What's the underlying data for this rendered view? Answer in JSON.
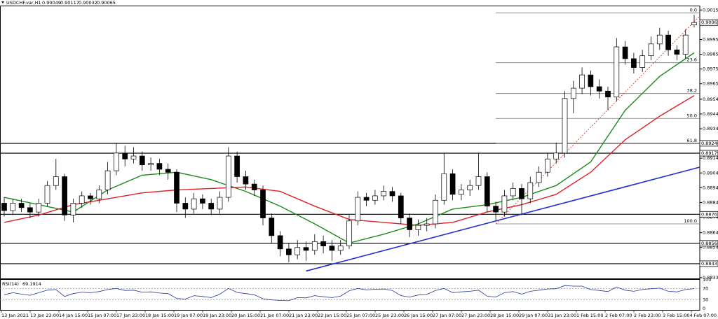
{
  "chart_data": {
    "type": "candlestick",
    "title": "USDCHF.var,H1",
    "ohlc": [
      [
        0.8884,
        0.8888,
        0.8875,
        0.8879
      ],
      [
        0.8879,
        0.8887,
        0.8876,
        0.8884
      ],
      [
        0.8884,
        0.8887,
        0.8878,
        0.8881
      ],
      [
        0.8881,
        0.8884,
        0.8874,
        0.8878
      ],
      [
        0.8878,
        0.8887,
        0.8875,
        0.8884
      ],
      [
        0.8884,
        0.8899,
        0.8882,
        0.8896
      ],
      [
        0.8896,
        0.8914,
        0.8893,
        0.8902
      ],
      [
        0.8902,
        0.8904,
        0.8872,
        0.8876
      ],
      [
        0.8876,
        0.8887,
        0.8871,
        0.8884
      ],
      [
        0.8884,
        0.8892,
        0.8881,
        0.8889
      ],
      [
        0.8889,
        0.8891,
        0.8883,
        0.8887
      ],
      [
        0.8887,
        0.8896,
        0.8884,
        0.8893
      ],
      [
        0.8893,
        0.8912,
        0.889,
        0.8906
      ],
      [
        0.8906,
        0.8925,
        0.8903,
        0.8918
      ],
      [
        0.8918,
        0.8923,
        0.8909,
        0.8914
      ],
      [
        0.8914,
        0.8922,
        0.8911,
        0.8916
      ],
      [
        0.8916,
        0.8919,
        0.8906,
        0.891
      ],
      [
        0.891,
        0.8915,
        0.8906,
        0.8911
      ],
      [
        0.8911,
        0.8914,
        0.8903,
        0.8907
      ],
      [
        0.8907,
        0.8911,
        0.89,
        0.8905
      ],
      [
        0.8905,
        0.8907,
        0.8878,
        0.8884
      ],
      [
        0.8884,
        0.8888,
        0.8874,
        0.888
      ],
      [
        0.888,
        0.8891,
        0.8877,
        0.8887
      ],
      [
        0.8887,
        0.889,
        0.888,
        0.8884
      ],
      [
        0.8884,
        0.8887,
        0.8876,
        0.888
      ],
      [
        0.888,
        0.8892,
        0.8877,
        0.8888
      ],
      [
        0.8888,
        0.8922,
        0.8885,
        0.8916
      ],
      [
        0.8916,
        0.8919,
        0.8898,
        0.8902
      ],
      [
        0.8902,
        0.8906,
        0.8893,
        0.8897
      ],
      [
        0.8897,
        0.89,
        0.8889,
        0.8893
      ],
      [
        0.8893,
        0.8896,
        0.8869,
        0.8874
      ],
      [
        0.8874,
        0.8877,
        0.8857,
        0.8862
      ],
      [
        0.8862,
        0.8865,
        0.8848,
        0.8853
      ],
      [
        0.8853,
        0.8857,
        0.8844,
        0.8849
      ],
      [
        0.8849,
        0.8859,
        0.8846,
        0.8854
      ],
      [
        0.8854,
        0.8858,
        0.8845,
        0.8852
      ],
      [
        0.8852,
        0.8863,
        0.8849,
        0.8858
      ],
      [
        0.8858,
        0.8862,
        0.885,
        0.8855
      ],
      [
        0.8855,
        0.8859,
        0.8845,
        0.8852
      ],
      [
        0.8852,
        0.8859,
        0.8849,
        0.8855
      ],
      [
        0.8855,
        0.8876,
        0.8853,
        0.8872
      ],
      [
        0.8872,
        0.8892,
        0.8869,
        0.8888
      ],
      [
        0.8888,
        0.8891,
        0.8882,
        0.8886
      ],
      [
        0.8886,
        0.8893,
        0.8883,
        0.8889
      ],
      [
        0.8889,
        0.8896,
        0.8886,
        0.8892
      ],
      [
        0.8892,
        0.8895,
        0.8885,
        0.8889
      ],
      [
        0.8889,
        0.8891,
        0.887,
        0.8874
      ],
      [
        0.8874,
        0.8877,
        0.8861,
        0.8866
      ],
      [
        0.8866,
        0.8873,
        0.8862,
        0.8869
      ],
      [
        0.8869,
        0.8874,
        0.8865,
        0.887
      ],
      [
        0.887,
        0.889,
        0.8867,
        0.8886
      ],
      [
        0.8886,
        0.8918,
        0.8883,
        0.8904
      ],
      [
        0.8904,
        0.8907,
        0.8886,
        0.889
      ],
      [
        0.889,
        0.8897,
        0.8886,
        0.8893
      ],
      [
        0.8893,
        0.89,
        0.8889,
        0.8896
      ],
      [
        0.8896,
        0.8918,
        0.8893,
        0.8902
      ],
      [
        0.8902,
        0.8905,
        0.8878,
        0.8882
      ],
      [
        0.8882,
        0.8885,
        0.8872,
        0.8878
      ],
      [
        0.8878,
        0.8893,
        0.8875,
        0.8889
      ],
      [
        0.8889,
        0.8898,
        0.8886,
        0.8894
      ],
      [
        0.8894,
        0.8897,
        0.8876,
        0.8887
      ],
      [
        0.8887,
        0.8902,
        0.8884,
        0.8898
      ],
      [
        0.8898,
        0.8909,
        0.8895,
        0.8905
      ],
      [
        0.8905,
        0.8918,
        0.8902,
        0.8914
      ],
      [
        0.8914,
        0.8925,
        0.8911,
        0.8918
      ],
      [
        0.8918,
        0.896,
        0.8915,
        0.8955
      ],
      [
        0.8955,
        0.8967,
        0.8945,
        0.8962
      ],
      [
        0.8962,
        0.8976,
        0.8958,
        0.8971
      ],
      [
        0.8971,
        0.8974,
        0.8957,
        0.8963
      ],
      [
        0.8963,
        0.8968,
        0.8955,
        0.896
      ],
      [
        0.896,
        0.8963,
        0.8947,
        0.8956
      ],
      [
        0.8956,
        0.8996,
        0.8953,
        0.899
      ],
      [
        0.899,
        0.8994,
        0.8978,
        0.8982
      ],
      [
        0.8982,
        0.8986,
        0.8972,
        0.8976
      ],
      [
        0.8976,
        0.8988,
        0.8973,
        0.8984
      ],
      [
        0.8984,
        0.8997,
        0.8981,
        0.8992
      ],
      [
        0.8992,
        0.9003,
        0.8988,
        0.8998
      ],
      [
        0.8998,
        0.9001,
        0.8984,
        0.8988
      ],
      [
        0.8988,
        0.8991,
        0.8981,
        0.8985
      ],
      [
        0.8985,
        0.9002,
        0.8982,
        0.8998
      ],
      [
        0.90049,
        0.90117,
        0.90032,
        0.90065
      ]
    ],
    "ylim": [
      0.8833,
      0.9018
    ],
    "yticks": [
      {
        "value": 0.9015,
        "label": "0.90150"
      },
      {
        "value": 0.8995,
        "label": "0.89950"
      },
      {
        "value": 0.8985,
        "label": "0.89850"
      },
      {
        "value": 0.8975,
        "label": "0.89750"
      },
      {
        "value": 0.8965,
        "label": "0.89650"
      },
      {
        "value": 0.89545,
        "label": "0.89545"
      },
      {
        "value": 0.89445,
        "label": "0.89445"
      },
      {
        "value": 0.89345,
        "label": "0.89345"
      },
      {
        "value": 0.89145,
        "label": "0.89145"
      },
      {
        "value": 0.89045,
        "label": "0.89045"
      },
      {
        "value": 0.88945,
        "label": "0.88945"
      },
      {
        "value": 0.88845,
        "label": "0.88845"
      },
      {
        "value": 0.88745,
        "label": "0.88745"
      },
      {
        "value": 0.8864,
        "label": "0.88640"
      },
      {
        "value": 0.8854,
        "label": "0.88540"
      },
      {
        "value": 0.88335,
        "label": "0.88335"
      }
    ],
    "categories": [
      "13 Jan 2021",
      "13 Jan 23:00",
      "14 Jan 15:00",
      "15 Jan 07:00",
      "17 Jan 23:00",
      "18 Jan 15:00",
      "19 Jan 07:00",
      "19 Jan 23:00",
      "20 Jan 15:00",
      "21 Jan 07:00",
      "21 Jan 23:00",
      "22 Jan 15:00",
      "25 Jan 07:00",
      "25 Jan 23:00",
      "26 Jan 15:00",
      "27 Jan 07:00",
      "27 Jan 23:00",
      "28 Jan 15:00",
      "29 Jan 07:00",
      "31 Jan 23:00",
      "1 Feb 15:00",
      "2 Feb 07:00",
      "2 Feb 23:00",
      "3 Feb 15:00",
      "4 Feb 07:00"
    ],
    "moving_averages": [
      {
        "color": "#1a8c1a",
        "x": [
          0,
          4,
          8,
          12,
          16,
          20,
          24,
          28,
          32,
          36,
          40,
          44,
          48,
          52,
          56,
          60,
          64,
          68,
          72,
          76,
          80
        ],
        "values": [
          0.8888,
          0.8883,
          0.8878,
          0.8893,
          0.8903,
          0.8905,
          0.89,
          0.8892,
          0.8882,
          0.887,
          0.8857,
          0.8863,
          0.887,
          0.888,
          0.8883,
          0.8888,
          0.8896,
          0.8912,
          0.8947,
          0.897,
          0.8986
        ]
      },
      {
        "color": "#e0202a",
        "x": [
          0,
          4,
          8,
          12,
          16,
          20,
          24,
          28,
          32,
          36,
          40,
          44,
          48,
          52,
          56,
          60,
          64,
          68,
          72,
          76,
          80
        ],
        "values": [
          0.8871,
          0.8876,
          0.8883,
          0.8887,
          0.8891,
          0.8893,
          0.8894,
          0.8895,
          0.8892,
          0.8882,
          0.8873,
          0.8871,
          0.8869,
          0.8871,
          0.8878,
          0.8883,
          0.889,
          0.8905,
          0.8927,
          0.8943,
          0.8957
        ]
      }
    ],
    "levels": [
      0.89246,
      0.89179,
      0.88765,
      0.88568,
      0.8843
    ],
    "trendline": {
      "color": "#1f2fd0",
      "x": [
        35,
        81
      ],
      "values": [
        0.8838,
        0.8909
      ]
    },
    "fibonacci": {
      "color": "#e02020",
      "x": [
        57,
        81
      ],
      "high": 0.9013,
      "low": 0.887,
      "levels": [
        {
          "value": 0,
          "label": "0.0"
        },
        {
          "value": 23.6,
          "label": "23.6"
        },
        {
          "value": 38.2,
          "label": "38.2"
        },
        {
          "value": 50,
          "label": "50.0"
        },
        {
          "value": 61.8,
          "label": "61.8"
        },
        {
          "value": 100,
          "label": "100.0"
        }
      ]
    },
    "rsi": {
      "name": "RSI(14)",
      "color": "#24339a",
      "ylim": [
        0,
        100
      ],
      "yticks": [
        100,
        70,
        30,
        0
      ],
      "values": [
        48,
        55,
        50,
        46,
        55,
        64,
        66,
        42,
        52,
        57,
        55,
        59,
        66,
        70,
        63,
        64,
        57,
        58,
        54,
        52,
        35,
        33,
        45,
        42,
        38,
        50,
        70,
        56,
        52,
        48,
        34,
        30,
        28,
        27,
        38,
        37,
        45,
        41,
        38,
        43,
        62,
        70,
        65,
        67,
        68,
        63,
        45,
        40,
        47,
        49,
        63,
        70,
        55,
        58,
        60,
        64,
        43,
        40,
        55,
        59,
        50,
        60,
        64,
        68,
        69,
        80,
        78,
        78,
        66,
        63,
        59,
        75,
        64,
        60,
        66,
        69,
        71,
        60,
        58,
        66,
        69.1914
      ]
    }
  }
}
